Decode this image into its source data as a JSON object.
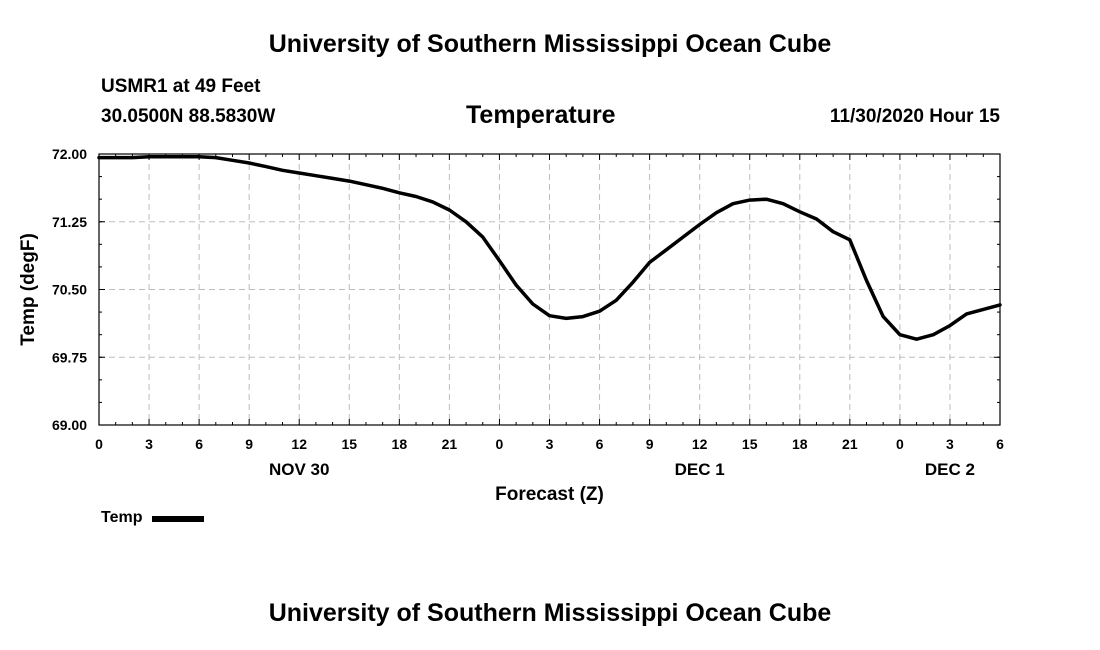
{
  "header": {
    "title": "University of Southern Mississippi Ocean Cube",
    "station": "USMR1 at 49 Feet",
    "coordinates": "30.0500N 88.5830W",
    "run_time": "11/30/2020 Hour 15"
  },
  "footer": {
    "title": "University of Southern Mississippi Ocean Cube"
  },
  "chart_data": {
    "type": "line",
    "title": "Temperature",
    "xlabel": "Forecast (Z)",
    "ylabel": "Temp (degF)",
    "xlim": [
      0,
      54
    ],
    "ylim": [
      69.0,
      72.0
    ],
    "grid": true,
    "x_unit": "hours from 0Z Nov 30",
    "y_ticks": [
      "69.00",
      "69.75",
      "70.50",
      "71.25",
      "72.00"
    ],
    "y_tick_values": [
      69.0,
      69.75,
      70.5,
      71.25,
      72.0
    ],
    "x_ticks": [
      0,
      3,
      6,
      9,
      12,
      15,
      18,
      21,
      24,
      27,
      30,
      33,
      36,
      39,
      42,
      45,
      48,
      51,
      54
    ],
    "x_tick_labels": [
      "0",
      "3",
      "6",
      "9",
      "12",
      "15",
      "18",
      "21",
      "0",
      "3",
      "6",
      "9",
      "12",
      "15",
      "18",
      "21",
      "0",
      "3",
      "6"
    ],
    "day_labels": [
      {
        "label": "NOV 30",
        "x": 12
      },
      {
        "label": "DEC 1",
        "x": 36
      },
      {
        "label": "DEC 2",
        "x": 51
      }
    ],
    "legend": [
      {
        "name": "Temp",
        "placement": "bottom-left"
      }
    ],
    "series": [
      {
        "name": "Temp",
        "color": "#000000",
        "x": [
          0,
          1,
          2,
          3,
          4,
          5,
          6,
          7,
          8,
          9,
          10,
          11,
          12,
          13,
          14,
          15,
          16,
          17,
          18,
          19,
          20,
          21,
          22,
          23,
          24,
          25,
          26,
          27,
          28,
          29,
          30,
          31,
          32,
          33,
          34,
          35,
          36,
          37,
          38,
          39,
          40,
          41,
          42,
          43,
          44,
          45,
          46,
          47,
          48,
          49,
          50,
          51,
          52,
          53,
          54
        ],
        "values": [
          71.96,
          71.96,
          71.96,
          71.97,
          71.97,
          71.97,
          71.97,
          71.96,
          71.93,
          71.9,
          71.86,
          71.82,
          71.79,
          71.76,
          71.73,
          71.7,
          71.66,
          71.62,
          71.57,
          71.53,
          71.47,
          71.38,
          71.25,
          71.08,
          70.82,
          70.55,
          70.34,
          70.21,
          70.18,
          70.2,
          70.26,
          70.38,
          70.58,
          70.8,
          70.94,
          71.08,
          71.22,
          71.35,
          71.45,
          71.49,
          71.5,
          71.45,
          71.36,
          71.28,
          71.14,
          71.05,
          70.6,
          70.2,
          70.0,
          69.95,
          70.0,
          70.1,
          70.23,
          70.28,
          70.33
        ]
      }
    ]
  }
}
